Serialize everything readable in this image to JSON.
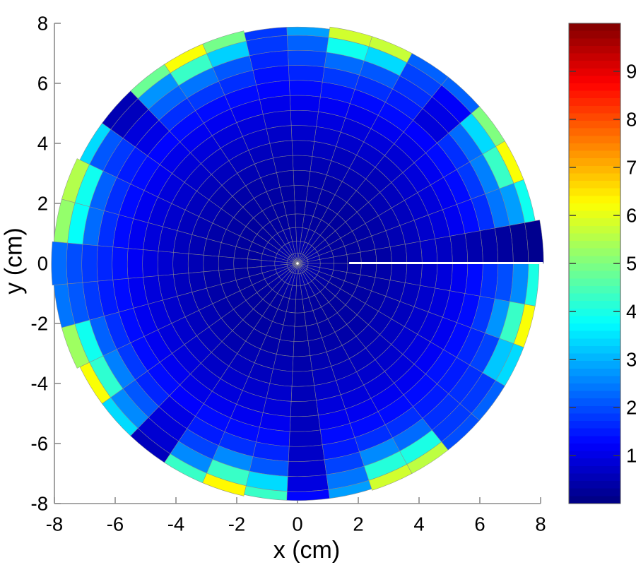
{
  "axes": {
    "xlabel": "x (cm)",
    "ylabel": "y (cm)",
    "xtick_labels": [
      "-8",
      "-6",
      "-4",
      "-2",
      "0",
      "2",
      "4",
      "6",
      "8"
    ],
    "ytick_labels": [
      "8",
      "6",
      "4",
      "2",
      "0",
      "-2",
      "-4",
      "-6",
      "-8"
    ],
    "xlim": [
      -8,
      8
    ],
    "ylim": [
      -8,
      8
    ]
  },
  "colorbar": {
    "tick_labels": [
      "1",
      "2",
      "3",
      "4",
      "5",
      "6",
      "7",
      "8",
      "9"
    ],
    "min": 0,
    "max": 10,
    "colormap": "jet"
  },
  "chart_data": {
    "type": "heatmap",
    "coordinates": "polar",
    "title": "",
    "xlabel": "x (cm)",
    "ylabel": "y (cm)",
    "xlim": [
      -8,
      8
    ],
    "ylim": [
      -8,
      8
    ],
    "caxis": [
      0,
      10
    ],
    "colormap": "jet",
    "grid": true,
    "n_sectors": 35,
    "ring_edges_cm": [
      0,
      0.15,
      0.35,
      0.75,
      1.2,
      1.65,
      2.1,
      2.6,
      3.1,
      3.6,
      4.1,
      4.6,
      5.1,
      5.6,
      6.1,
      6.6,
      7.1,
      7.6,
      7.95
    ],
    "base_ring_values": [
      0.55,
      0.5,
      0.45,
      0.35,
      0.3,
      0.3,
      0.35,
      0.4,
      0.5,
      0.6,
      0.75,
      0.9,
      1.1,
      1.35,
      1.6,
      1.9,
      2.3,
      2.8
    ],
    "r_out_default": 7.95,
    "seam": {
      "theta_deg": 0,
      "r_start_cm": 1.7,
      "color": "#ffffff"
    },
    "center_dot": {
      "color": "#ffffff",
      "radius_px": 1.8
    },
    "sectors": [
      {
        "outer_override": [
          0.7,
          0.65,
          0.55,
          0.45,
          0.4,
          0.3,
          0.2,
          0.15
        ],
        "tint": 0.9,
        "r_out": 8.1
      },
      {
        "rim": [
          1.7,
          2.4,
          2.8,
          3.9
        ]
      },
      {
        "rim": [
          1.8,
          2.5,
          4.3,
          6.2
        ]
      },
      {
        "rim": [
          1.7,
          2.3,
          3.4,
          5.0
        ]
      },
      {
        "rim": [
          0.9,
          1.0,
          1.2,
          2.2
        ],
        "tint": 0.92
      },
      {
        "rim": [
          1.5,
          1.7,
          1.9,
          2.2
        ]
      },
      {
        "rim": [
          1.7,
          2.1,
          3.4,
          5.7
        ]
      },
      {
        "rim": [
          1.8,
          2.3,
          3.9,
          5.8
        ],
        "tint": 1.05
      },
      {
        "rim": [
          1.6,
          1.9,
          2.2,
          2.8
        ],
        "r_out": 7.88
      },
      {
        "rim": [
          1.4,
          1.6,
          1.8,
          1.8
        ],
        "tint": 0.95,
        "r_out": 7.88
      },
      {
        "rim": [
          1.7,
          2.1,
          3.3,
          4.9
        ]
      },
      {
        "rim": [
          1.8,
          2.4,
          4.3,
          6.2
        ]
      },
      {
        "rim": [
          1.7,
          2.2,
          2.7,
          4.8
        ]
      },
      {
        "rim": [
          1.0,
          0.9,
          0.6,
          0.5
        ],
        "tint": 0.95
      },
      {
        "rim": [
          1.5,
          1.8,
          2.1,
          3.4
        ]
      },
      {
        "rim": [
          1.7,
          2.2,
          3.9,
          5.5
        ],
        "r_out": 8.05
      },
      {
        "rim": [
          1.7,
          2.3,
          3.8,
          5.2
        ],
        "r_out": 8.05
      },
      {
        "rim": [
          1.6,
          1.8,
          2.0,
          2.3
        ],
        "tint": 1.05,
        "r_out": 8.1
      },
      {
        "rim": [
          1.5,
          1.8,
          2.1,
          2.4
        ],
        "r_out": 8.05
      },
      {
        "rim": [
          1.7,
          2.2,
          3.9,
          5.3
        ],
        "r_out": 8.05
      },
      {
        "rim": [
          1.8,
          2.5,
          4.2,
          6.2
        ]
      },
      {
        "rim": [
          1.6,
          2.1,
          2.6,
          3.4
        ]
      },
      {
        "rim": [
          1.0,
          0.9,
          0.8,
          0.6
        ],
        "tint": 0.92
      },
      {
        "rim": [
          1.5,
          1.9,
          2.6,
          4.3
        ]
      },
      {
        "rim": [
          1.7,
          2.6,
          4.3,
          6.3
        ]
      },
      {
        "rim": [
          1.6,
          2.1,
          3.4,
          4.3
        ],
        "r_out": 7.9
      },
      {
        "outer_override": [
          0.55,
          0.55,
          0.6,
          0.65,
          0.7,
          0.8,
          0.95,
          1.3
        ],
        "tint": 0.85,
        "r_out": 7.9
      },
      {
        "rim": [
          1.5,
          1.9,
          2.4,
          2.8
        ],
        "r_out": 7.9
      },
      {
        "rim": [
          1.7,
          2.6,
          4.1,
          5.8
        ]
      },
      {
        "rim": [
          1.7,
          2.3,
          4.0,
          5.6
        ]
      },
      {
        "rim": [
          1.5,
          1.7,
          1.8,
          2.0
        ]
      },
      {
        "rim": [
          1.5,
          1.7,
          1.8,
          2.2
        ],
        "tint": 1.05
      },
      {
        "rim": [
          1.6,
          1.9,
          3.2,
          3.4
        ]
      },
      {
        "rim": [
          1.8,
          2.7,
          4.3,
          6.2
        ]
      },
      {
        "rim": [
          1.7,
          2.0,
          2.6,
          4.0
        ]
      }
    ]
  }
}
